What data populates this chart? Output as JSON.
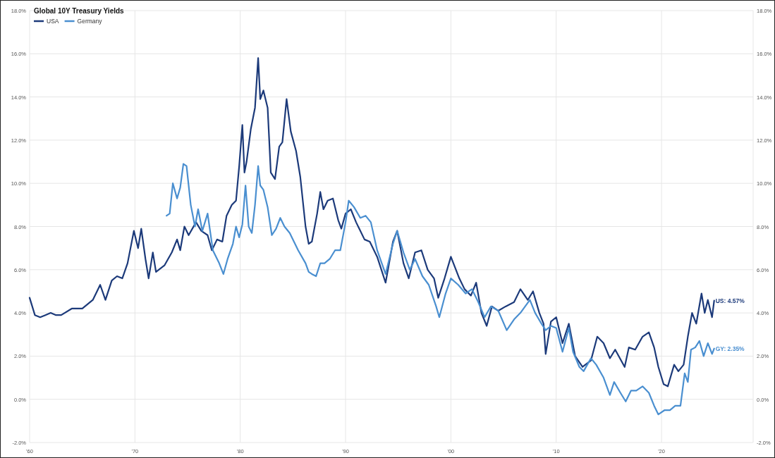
{
  "chart_data": {
    "type": "line",
    "title": "Global 10Y Treasury Yields",
    "legend": "top left",
    "grid": true,
    "line_style": "solid",
    "marker": "none",
    "xlim": [
      1960,
      2028.7
    ],
    "xticks": [
      {
        "value": 1960,
        "label": "'60"
      },
      {
        "value": 1970,
        "label": "'70"
      },
      {
        "value": 1980,
        "label": "'80"
      },
      {
        "value": 1990,
        "label": "'90"
      },
      {
        "value": 2000,
        "label": "'00"
      },
      {
        "value": 2010,
        "label": "'10"
      },
      {
        "value": 2020,
        "label": "'20"
      }
    ],
    "ylim": [
      -2,
      18
    ],
    "yticks": [
      {
        "value": -2,
        "label": "-2.0%"
      },
      {
        "value": 0,
        "label": "0.0%"
      },
      {
        "value": 2,
        "label": "2.0%"
      },
      {
        "value": 4,
        "label": "4.0%"
      },
      {
        "value": 6,
        "label": "6.0%"
      },
      {
        "value": 8,
        "label": "8.0%"
      },
      {
        "value": 10,
        "label": "10.0%"
      },
      {
        "value": 12,
        "label": "12.0%"
      },
      {
        "value": 14,
        "label": "14.0%"
      },
      {
        "value": 16,
        "label": "16.0%"
      },
      {
        "value": 18,
        "label": "18.0%"
      }
    ],
    "y2lim": [
      -2,
      18
    ],
    "y2ticks": [
      {
        "value": -2,
        "label": "-2.0%"
      },
      {
        "value": 0,
        "label": "0.0%"
      },
      {
        "value": 2,
        "label": "2.0%"
      },
      {
        "value": 4,
        "label": "4.0%"
      },
      {
        "value": 6,
        "label": "6.0%"
      },
      {
        "value": 8,
        "label": "8.0%"
      },
      {
        "value": 10,
        "label": "10.0%"
      },
      {
        "value": 12,
        "label": "12.0%"
      },
      {
        "value": 14,
        "label": "14.0%"
      },
      {
        "value": 16,
        "label": "16.0%"
      },
      {
        "value": 18,
        "label": "18.0%"
      }
    ],
    "annotations": [
      {
        "text": "US: 4.57%",
        "x": 2025,
        "y": 4.57
      },
      {
        "text": "GY: 2.35%",
        "x": 2025,
        "y": 2.35
      }
    ],
    "series": [
      {
        "name": "USA",
        "color": "#1c3a7a",
        "x": [
          1960,
          1960.5,
          1961,
          1961.5,
          1962,
          1962.5,
          1963,
          1964,
          1965,
          1966,
          1966.7,
          1967.2,
          1967.8,
          1968.3,
          1968.8,
          1969.3,
          1969.9,
          1970.3,
          1970.6,
          1971,
          1971.3,
          1971.7,
          1972,
          1972.8,
          1973.5,
          1974,
          1974.3,
          1974.7,
          1975.1,
          1975.8,
          1976.3,
          1976.9,
          1977.3,
          1977.8,
          1978.3,
          1978.7,
          1979.2,
          1979.6,
          1979.9,
          1980.2,
          1980.4,
          1980.6,
          1981,
          1981.4,
          1981.7,
          1981.9,
          1982.2,
          1982.6,
          1982.9,
          1983.3,
          1983.7,
          1984,
          1984.4,
          1984.8,
          1985.3,
          1985.7,
          1986.2,
          1986.5,
          1986.8,
          1987.3,
          1987.6,
          1987.9,
          1988.3,
          1988.8,
          1989.3,
          1989.6,
          1990,
          1990.5,
          1991,
          1991.8,
          1992.3,
          1993,
          1993.8,
          1994.5,
          1994.9,
          1995.5,
          1996,
          1996.6,
          1997.2,
          1997.8,
          1998.4,
          1998.8,
          1999.4,
          2000,
          2000.8,
          2001.3,
          2001.9,
          2002.4,
          2002.9,
          2003.4,
          2003.9,
          2004.5,
          2005.2,
          2006,
          2006.6,
          2007.3,
          2007.8,
          2008.4,
          2008.8,
          2009,
          2009.5,
          2010,
          2010.6,
          2011.2,
          2011.8,
          2012.5,
          2013.3,
          2013.9,
          2014.5,
          2015.1,
          2015.6,
          2016.5,
          2016.9,
          2017.5,
          2018.2,
          2018.8,
          2019.3,
          2019.7,
          2020.2,
          2020.6,
          2021.2,
          2021.6,
          2022.1,
          2022.5,
          2022.9,
          2023.3,
          2023.8,
          2024.1,
          2024.4,
          2024.8,
          2025
        ],
        "values": [
          4.7,
          3.9,
          3.8,
          3.9,
          4.0,
          3.9,
          3.9,
          4.2,
          4.2,
          4.6,
          5.3,
          4.6,
          5.5,
          5.7,
          5.6,
          6.3,
          7.8,
          7.0,
          7.9,
          6.5,
          5.6,
          6.8,
          5.9,
          6.2,
          6.8,
          7.4,
          6.9,
          8.0,
          7.6,
          8.2,
          7.8,
          7.6,
          6.9,
          7.4,
          7.3,
          8.5,
          9.0,
          9.2,
          10.8,
          12.7,
          10.5,
          11.0,
          12.5,
          13.5,
          15.8,
          13.9,
          14.3,
          13.5,
          10.5,
          10.2,
          11.7,
          11.9,
          13.9,
          12.4,
          11.5,
          10.3,
          8.0,
          7.2,
          7.3,
          8.6,
          9.6,
          8.8,
          9.2,
          9.3,
          8.3,
          7.9,
          8.6,
          8.8,
          8.2,
          7.4,
          7.3,
          6.6,
          5.4,
          7.3,
          7.8,
          6.3,
          5.6,
          6.8,
          6.9,
          6.0,
          5.6,
          4.7,
          5.6,
          6.6,
          5.6,
          5.1,
          4.8,
          5.4,
          4.0,
          3.4,
          4.3,
          4.1,
          4.3,
          4.5,
          5.1,
          4.6,
          5.0,
          4.0,
          3.5,
          2.1,
          3.6,
          3.8,
          2.6,
          3.5,
          2.0,
          1.5,
          1.8,
          2.9,
          2.6,
          1.9,
          2.3,
          1.5,
          2.4,
          2.3,
          2.9,
          3.1,
          2.4,
          1.5,
          0.7,
          0.6,
          1.6,
          1.3,
          1.6,
          2.9,
          4.0,
          3.5,
          4.9,
          4.0,
          4.6,
          3.8,
          4.57
        ]
      },
      {
        "name": "Germany",
        "color": "#4a8fd0",
        "x": [
          1973,
          1973.3,
          1973.6,
          1974,
          1974.3,
          1974.6,
          1974.9,
          1975.3,
          1975.7,
          1976,
          1976.4,
          1976.9,
          1977.4,
          1978,
          1978.4,
          1978.8,
          1979.3,
          1979.6,
          1979.9,
          1980.2,
          1980.5,
          1980.8,
          1981.1,
          1981.4,
          1981.7,
          1981.9,
          1982.2,
          1982.6,
          1983,
          1983.4,
          1983.8,
          1984.2,
          1984.7,
          1985.1,
          1985.5,
          1986.2,
          1986.5,
          1986.8,
          1987.2,
          1987.6,
          1988,
          1988.5,
          1989,
          1989.5,
          1990,
          1990.3,
          1990.8,
          1991.4,
          1991.9,
          1992.4,
          1993,
          1993.8,
          1994.5,
          1994.9,
          1995.5,
          1996.1,
          1996.6,
          1997.3,
          1997.9,
          1998.6,
          1998.9,
          1999.5,
          2000,
          2000.7,
          2001.4,
          2002,
          2002.6,
          2003.2,
          2003.8,
          2004.5,
          2005.3,
          2006,
          2006.6,
          2007.5,
          2008,
          2008.6,
          2009,
          2009.5,
          2010,
          2010.6,
          2011.2,
          2011.6,
          2012.2,
          2012.6,
          2013.3,
          2013.8,
          2014.5,
          2015.1,
          2015.5,
          2016.1,
          2016.6,
          2017.1,
          2017.6,
          2018.2,
          2018.8,
          2019.3,
          2019.7,
          2020.3,
          2020.8,
          2021.3,
          2021.8,
          2022.2,
          2022.5,
          2022.8,
          2023.2,
          2023.6,
          2024,
          2024.4,
          2024.8,
          2025
        ],
        "values": [
          8.5,
          8.6,
          10.0,
          9.3,
          9.8,
          10.9,
          10.8,
          9.0,
          8.0,
          8.8,
          7.8,
          8.6,
          6.9,
          6.3,
          5.8,
          6.5,
          7.2,
          8.0,
          7.5,
          8.1,
          9.9,
          8.0,
          7.7,
          9.0,
          10.8,
          9.9,
          9.7,
          8.9,
          7.6,
          7.9,
          8.4,
          8.0,
          7.7,
          7.3,
          6.9,
          6.3,
          5.9,
          5.8,
          5.7,
          6.3,
          6.3,
          6.5,
          6.9,
          6.9,
          8.2,
          9.2,
          8.9,
          8.4,
          8.5,
          8.2,
          6.9,
          5.8,
          7.2,
          7.8,
          6.8,
          6.0,
          6.5,
          5.7,
          5.3,
          4.3,
          3.8,
          4.9,
          5.6,
          5.3,
          4.9,
          5.1,
          4.5,
          3.8,
          4.3,
          4.1,
          3.2,
          3.7,
          4.0,
          4.6,
          4.0,
          3.5,
          3.2,
          3.4,
          3.3,
          2.2,
          3.3,
          2.2,
          1.5,
          1.3,
          1.9,
          1.6,
          1.0,
          0.2,
          0.8,
          0.3,
          -0.1,
          0.4,
          0.4,
          0.6,
          0.3,
          -0.3,
          -0.7,
          -0.5,
          -0.5,
          -0.3,
          -0.3,
          1.2,
          0.8,
          2.3,
          2.4,
          2.7,
          2.0,
          2.6,
          2.1,
          2.35
        ]
      }
    ]
  }
}
